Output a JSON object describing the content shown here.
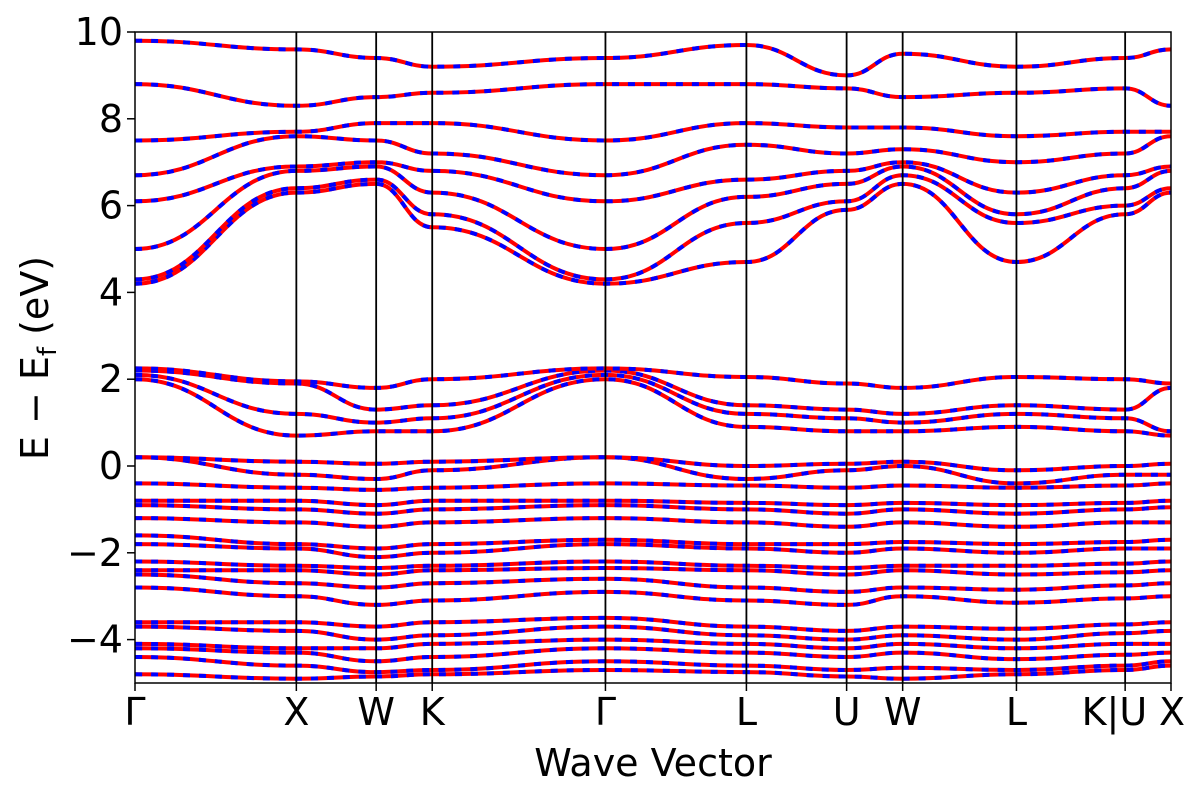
{
  "chart_data": {
    "type": "line",
    "title": "",
    "xlabel": "Wave Vector",
    "ylabel": {
      "main": "E − E",
      "sub": "f",
      "unit": " (eV)"
    },
    "ylim": [
      -5,
      10
    ],
    "yticks": [
      -4,
      -2,
      0,
      2,
      4,
      6,
      8,
      10
    ],
    "ytick_labels": [
      "−4",
      "−2",
      "0",
      "2",
      "4",
      "6",
      "8",
      "10"
    ],
    "xlim": [
      0,
      6.1
    ],
    "kpoints": [
      {
        "label": "Γ",
        "x": 0.0
      },
      {
        "label": "X",
        "x": 0.95
      },
      {
        "label": "W",
        "x": 1.42
      },
      {
        "label": "K",
        "x": 1.75
      },
      {
        "label": "Γ",
        "x": 2.77
      },
      {
        "label": "L",
        "x": 3.6
      },
      {
        "label": "U",
        "x": 4.19
      },
      {
        "label": "W",
        "x": 4.52
      },
      {
        "label": "L",
        "x": 5.19
      },
      {
        "label": "K|U",
        "x": 5.83
      },
      {
        "label": "X",
        "x": 6.1
      }
    ],
    "series_colors": {
      "spin_up": "#ff0000",
      "spin_down": "#0000ff"
    },
    "grid": false,
    "legend": "none",
    "bands": [
      [
        -4.8,
        -4.9,
        -4.85,
        -4.8,
        -4.7,
        -4.75,
        -4.85,
        -4.9,
        -4.8,
        -4.7,
        -4.6
      ],
      [
        -4.4,
        -4.6,
        -4.75,
        -4.7,
        -4.5,
        -4.6,
        -4.7,
        -4.65,
        -4.7,
        -4.6,
        -4.5
      ],
      [
        -4.2,
        -4.3,
        -4.5,
        -4.4,
        -4.2,
        -4.3,
        -4.4,
        -4.3,
        -4.45,
        -4.35,
        -4.3
      ],
      [
        -4.1,
        -4.2,
        -4.2,
        -4.1,
        -4.0,
        -4.1,
        -4.2,
        -4.1,
        -4.2,
        -4.1,
        -4.1
      ],
      [
        -3.7,
        -3.8,
        -4.0,
        -3.9,
        -3.7,
        -3.9,
        -4.0,
        -3.9,
        -4.0,
        -3.85,
        -3.8
      ],
      [
        -3.6,
        -3.6,
        -3.7,
        -3.6,
        -3.5,
        -3.7,
        -3.8,
        -3.7,
        -3.75,
        -3.65,
        -3.6
      ],
      [
        -2.8,
        -3.0,
        -3.2,
        -3.1,
        -2.9,
        -3.1,
        -3.2,
        -3.0,
        -3.15,
        -3.05,
        -3.0
      ],
      [
        -2.5,
        -2.7,
        -2.8,
        -2.7,
        -2.6,
        -2.8,
        -2.9,
        -2.8,
        -2.85,
        -2.75,
        -2.7
      ],
      [
        -2.4,
        -2.4,
        -2.5,
        -2.4,
        -2.35,
        -2.4,
        -2.5,
        -2.4,
        -2.5,
        -2.45,
        -2.4
      ],
      [
        -2.2,
        -2.3,
        -2.35,
        -2.3,
        -2.2,
        -2.3,
        -2.35,
        -2.3,
        -2.3,
        -2.25,
        -2.2
      ],
      [
        -1.8,
        -1.9,
        -2.1,
        -2.0,
        -1.8,
        -1.9,
        -2.0,
        -1.9,
        -2.0,
        -1.9,
        -1.9
      ],
      [
        -1.6,
        -1.8,
        -1.9,
        -1.8,
        -1.7,
        -1.8,
        -1.8,
        -1.75,
        -1.8,
        -1.75,
        -1.7
      ],
      [
        -1.2,
        -1.3,
        -1.4,
        -1.3,
        -1.2,
        -1.3,
        -1.4,
        -1.3,
        -1.4,
        -1.3,
        -1.3
      ],
      [
        -0.9,
        -1.0,
        -1.1,
        -1.0,
        -0.9,
        -1.0,
        -1.1,
        -1.0,
        -1.1,
        -1.0,
        -0.95
      ],
      [
        -0.8,
        -0.8,
        -0.9,
        -0.8,
        -0.8,
        -0.85,
        -0.9,
        -0.85,
        -0.9,
        -0.85,
        -0.8
      ],
      [
        -0.4,
        -0.5,
        -0.55,
        -0.5,
        -0.4,
        -0.45,
        -0.5,
        -0.45,
        -0.5,
        -0.45,
        -0.4
      ],
      [
        0.2,
        -0.2,
        -0.3,
        -0.1,
        0.2,
        -0.3,
        -0.1,
        0.0,
        -0.4,
        -0.2,
        -0.2
      ],
      [
        0.2,
        0.1,
        0.05,
        0.1,
        0.2,
        0.0,
        0.05,
        0.1,
        -0.1,
        0.0,
        0.05
      ],
      [
        2.0,
        0.7,
        0.8,
        0.8,
        2.0,
        0.9,
        0.8,
        0.8,
        0.9,
        0.8,
        0.7
      ],
      [
        2.1,
        1.2,
        1.0,
        1.1,
        2.1,
        1.2,
        1.1,
        1.0,
        1.2,
        1.1,
        0.8
      ],
      [
        2.2,
        1.9,
        1.3,
        1.4,
        2.2,
        1.4,
        1.3,
        1.2,
        1.4,
        1.3,
        1.8
      ],
      [
        2.25,
        1.95,
        1.8,
        2.0,
        2.25,
        2.05,
        1.9,
        1.8,
        2.05,
        2.0,
        1.9
      ],
      [
        4.2,
        6.3,
        6.5,
        5.5,
        4.2,
        4.7,
        5.9,
        6.5,
        4.7,
        5.8,
        6.3
      ],
      [
        4.3,
        6.4,
        6.6,
        5.8,
        4.3,
        5.6,
        6.1,
        6.7,
        5.6,
        6.0,
        6.4
      ],
      [
        5.0,
        6.8,
        6.9,
        6.3,
        5.0,
        6.2,
        6.5,
        6.9,
        5.8,
        6.4,
        6.8
      ],
      [
        6.1,
        6.9,
        7.0,
        6.8,
        6.1,
        6.6,
        6.8,
        7.0,
        6.3,
        6.7,
        6.9
      ],
      [
        6.7,
        7.6,
        7.5,
        7.2,
        6.7,
        7.4,
        7.2,
        7.3,
        7.0,
        7.2,
        7.6
      ],
      [
        7.5,
        7.7,
        7.9,
        7.9,
        7.5,
        7.9,
        7.8,
        7.8,
        7.6,
        7.7,
        7.7
      ],
      [
        8.8,
        8.3,
        8.5,
        8.6,
        8.8,
        8.8,
        8.7,
        8.5,
        8.6,
        8.7,
        8.3
      ],
      [
        9.8,
        9.6,
        9.4,
        9.2,
        9.4,
        9.7,
        9.0,
        9.5,
        9.2,
        9.4,
        9.6
      ]
    ]
  }
}
